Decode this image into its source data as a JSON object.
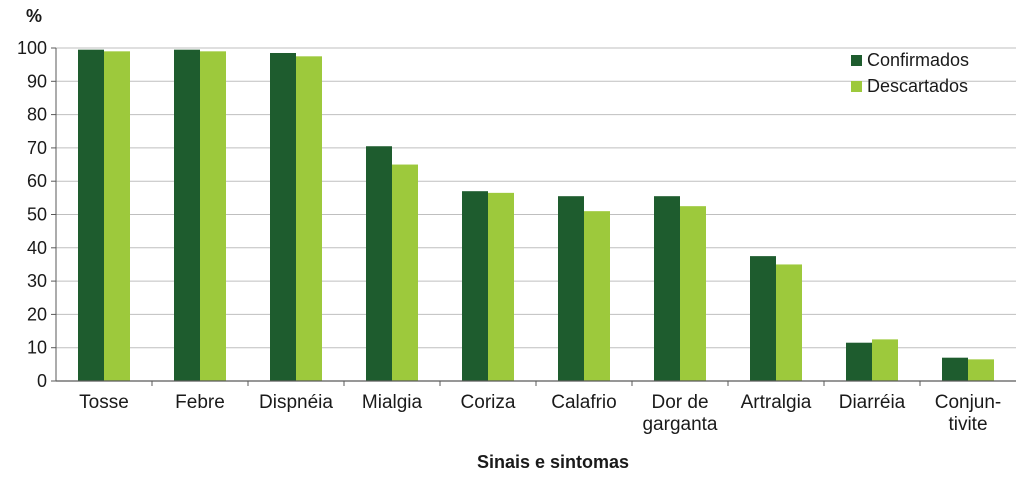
{
  "chart_data": {
    "type": "bar",
    "ylabel": "%",
    "xlabel": "Sinais e sintomas",
    "ylim": [
      0,
      100
    ],
    "yticks": [
      0,
      10,
      20,
      30,
      40,
      50,
      60,
      70,
      80,
      90,
      100
    ],
    "grid": true,
    "legend_position": "top-right",
    "categories": [
      [
        "Tosse"
      ],
      [
        "Febre"
      ],
      [
        "Dispnéia"
      ],
      [
        "Mialgia"
      ],
      [
        "Coriza"
      ],
      [
        "Calafrio"
      ],
      [
        "Dor de",
        "garganta"
      ],
      [
        "Artralgia"
      ],
      [
        "Diarréia"
      ],
      [
        "Conjun-",
        "tivite"
      ]
    ],
    "series": [
      {
        "name": "Confirmados",
        "color": "#1e5c2e",
        "values": [
          99.5,
          99.5,
          98.5,
          70.5,
          57,
          55.5,
          55.5,
          37.5,
          11.5,
          7
        ]
      },
      {
        "name": "Descartados",
        "color": "#9dc93c",
        "values": [
          99,
          99,
          97.5,
          65,
          56.5,
          51,
          52.5,
          35,
          12.5,
          6.5
        ]
      }
    ]
  }
}
